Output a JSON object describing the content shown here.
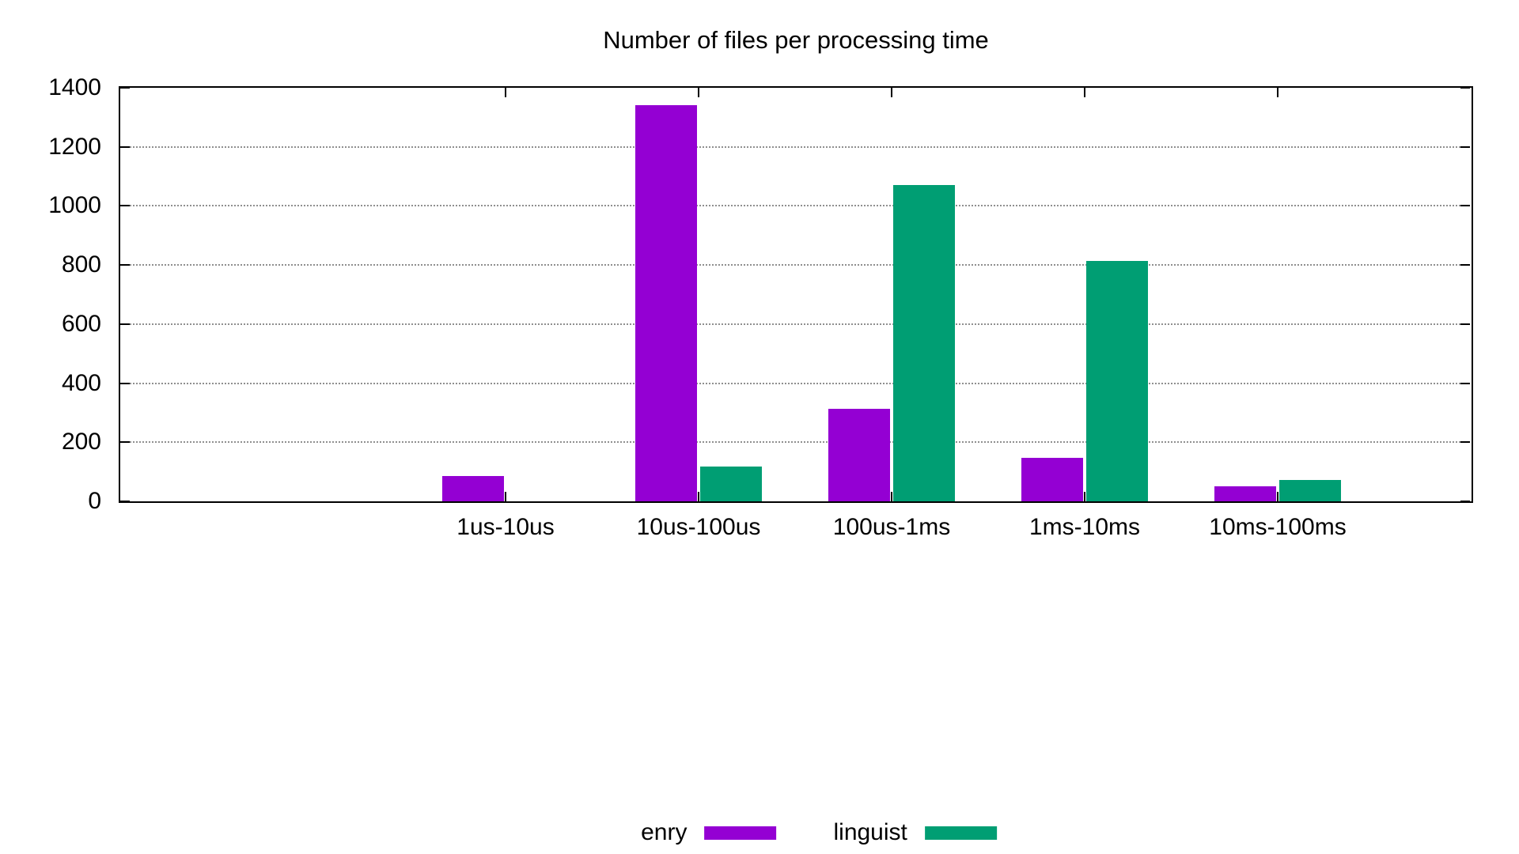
{
  "title": "Number of files per processing time",
  "chart_data": {
    "type": "bar",
    "title": "Number of files per processing time",
    "categories": [
      "1us-10us",
      "10us-100us",
      "100us-1ms",
      "1ms-10ms",
      "10ms-100ms"
    ],
    "series": [
      {
        "name": "enry",
        "color": "#9400d3",
        "values": [
          85,
          1340,
          313,
          148,
          50
        ]
      },
      {
        "name": "linguist",
        "color": "#009e73",
        "values": [
          0,
          118,
          1070,
          815,
          73
        ]
      }
    ],
    "xlabel": "",
    "ylabel": "",
    "ylim": [
      0,
      1400
    ],
    "yticks": [
      0,
      200,
      400,
      600,
      800,
      1000,
      1200,
      1400
    ],
    "grid": "horizontal dotted gray",
    "axis_color": "#000000",
    "background": "#ffffff",
    "legend": {
      "position": "bottom-center",
      "entries": [
        "enry",
        "linguist"
      ]
    }
  }
}
